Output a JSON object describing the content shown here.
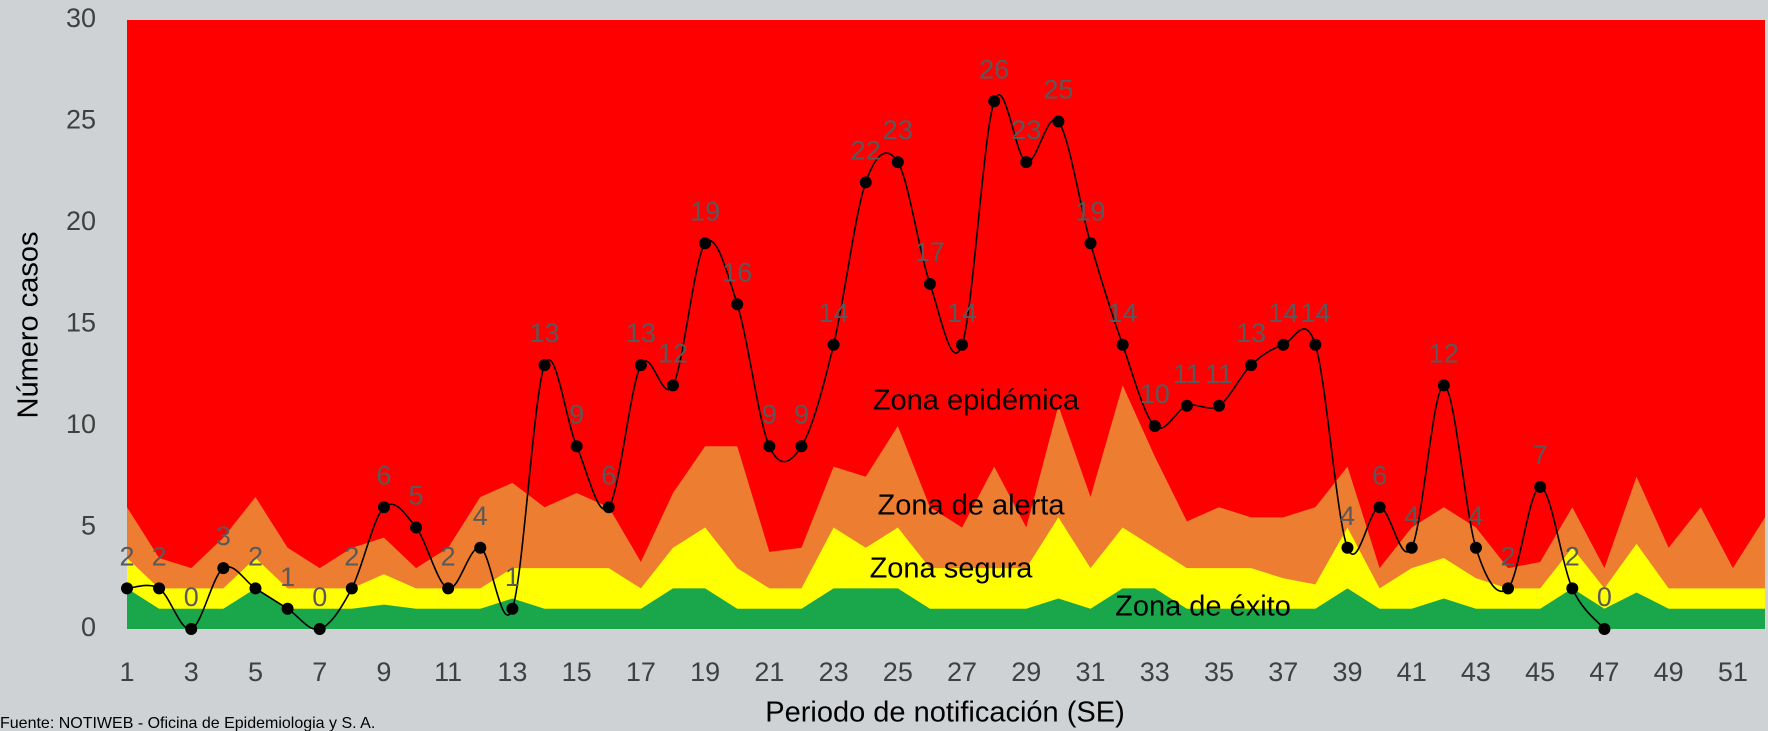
{
  "chart_data": {
    "type": "line",
    "y_label": "Número casos",
    "x_label": "Periodo de notificación (SE)",
    "source": "Fuente: NOTIWEB - Oficina de Epidemiologia y S. A.",
    "x": [
      1,
      2,
      3,
      4,
      5,
      6,
      7,
      8,
      9,
      10,
      11,
      12,
      13,
      14,
      15,
      16,
      17,
      18,
      19,
      20,
      21,
      22,
      23,
      24,
      25,
      26,
      27,
      28,
      29,
      30,
      31,
      32,
      33,
      34,
      35,
      36,
      37,
      38,
      39,
      40,
      41,
      42,
      43,
      44,
      45,
      46,
      47,
      48,
      49,
      50,
      51,
      52
    ],
    "values": [
      2,
      2,
      0,
      3,
      2,
      1,
      0,
      2,
      6,
      5,
      2,
      4,
      1,
      13,
      9,
      6,
      13,
      12,
      19,
      16,
      9,
      9,
      14,
      22,
      23,
      17,
      14,
      26,
      23,
      25,
      19,
      14,
      10,
      11,
      11,
      13,
      14,
      14,
      4,
      6,
      4,
      12,
      4,
      2,
      7,
      2,
      0,
      null,
      null,
      null,
      null,
      null
    ],
    "color": "#000000",
    "zones": [
      {
        "name": "Zona de éxito",
        "color": "#1aa64a",
        "values": [
          2,
          1,
          1,
          1,
          2,
          1,
          1,
          1,
          1.2,
          1,
          1,
          1,
          1.5,
          1,
          1,
          1,
          1,
          2,
          2,
          1,
          1,
          1,
          2,
          2,
          2,
          1,
          1,
          1,
          1,
          1.5,
          1,
          2,
          2,
          1,
          1,
          1,
          1,
          1,
          2,
          1,
          1,
          1.5,
          1,
          1,
          1,
          2,
          1,
          1.8,
          1,
          1,
          1,
          1
        ]
      },
      {
        "name": "Zona segura",
        "color": "#ffff00",
        "values": [
          3.5,
          2,
          2,
          2,
          3.5,
          2,
          2,
          2,
          2.7,
          2,
          2,
          2,
          3,
          3,
          3,
          3,
          2,
          4,
          5,
          3,
          2,
          2,
          5,
          4,
          5,
          3,
          3,
          3,
          3,
          5.5,
          3,
          5,
          4,
          3,
          3,
          3,
          2.5,
          2.2,
          5,
          2,
          3,
          3.5,
          2.5,
          2,
          2,
          4,
          2,
          4.2,
          2,
          2,
          2,
          2
        ]
      },
      {
        "name": "Zona de alerta",
        "color": "#ed7d31",
        "values": [
          6,
          3.5,
          3,
          4.5,
          6.5,
          4,
          3,
          4,
          4.5,
          3,
          4,
          6.5,
          7.2,
          6,
          6.7,
          6,
          3.3,
          6.7,
          9,
          9,
          3.8,
          4,
          8,
          7.5,
          10,
          6,
          5,
          8,
          5,
          11,
          6.5,
          12,
          8.5,
          5.3,
          6,
          5.5,
          5.5,
          6,
          8,
          3,
          5,
          6,
          5,
          3,
          3.3,
          6,
          3,
          7.5,
          4,
          6,
          3,
          5.5
        ]
      },
      {
        "name": "Zona epidémica",
        "color": "#ff0000"
      }
    ],
    "xlim": [
      1,
      52
    ],
    "xticks": [
      1,
      3,
      5,
      7,
      9,
      11,
      13,
      15,
      17,
      19,
      21,
      23,
      25,
      27,
      29,
      31,
      33,
      35,
      37,
      39,
      41,
      43,
      45,
      47,
      49,
      51
    ],
    "ylim": [
      0,
      30
    ],
    "yticks": [
      0,
      5,
      10,
      15,
      20,
      25,
      30
    ]
  }
}
